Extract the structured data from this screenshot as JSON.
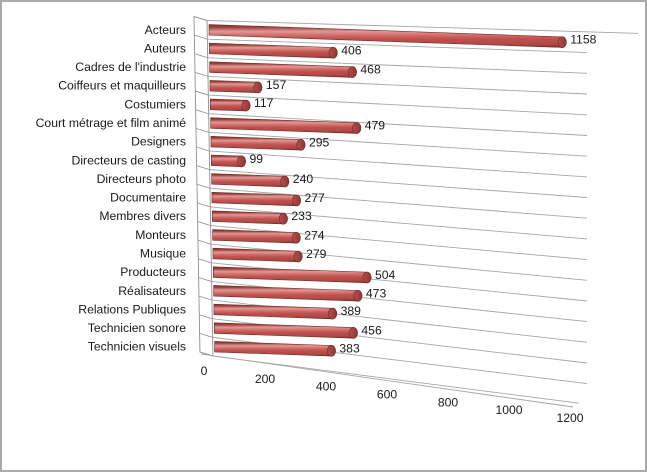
{
  "chart_data": {
    "type": "bar",
    "orientation": "horizontal",
    "style": "3d-cylinder",
    "title": "",
    "legend": "none",
    "grid": "on",
    "categories": [
      "Acteurs",
      "Auteurs",
      "Cadres de l'industrie",
      "Coiffeurs et maquilleurs",
      "Costumiers",
      "Court métrage et film animé",
      "Designers",
      "Directeurs de casting",
      "Directeurs photo",
      "Documentaire",
      "Membres divers",
      "Monteurs",
      "Musique",
      "Producteurs",
      "Réalisateurs",
      "Relations Publiques",
      "Technicien sonore",
      "Technicien visuels"
    ],
    "values": [
      1158,
      406,
      468,
      157,
      117,
      479,
      295,
      99,
      240,
      277,
      233,
      274,
      279,
      504,
      473,
      389,
      456,
      383
    ],
    "data_labels": [
      "1158",
      "406",
      "468",
      "157",
      "117",
      "479",
      "295",
      "99",
      "240",
      "277",
      "233",
      "274",
      "279",
      "504",
      "473",
      "389",
      "456",
      "383"
    ],
    "x_ticks": [
      0,
      200,
      400,
      600,
      800,
      1000,
      1200
    ],
    "x_tick_labels": [
      "0",
      "200",
      "400",
      "600",
      "800",
      "1000",
      "1200"
    ],
    "xlim": [
      0,
      1200
    ],
    "xlabel": "",
    "ylabel": "",
    "colors": {
      "bar_main": "#c0504d",
      "bar_dark": "#7f3331",
      "bar_light": "#e09a96",
      "bar_outline": "#6f2a28",
      "gridline": "#a6a6a6",
      "wall_stroke": "#8f8f8f",
      "wall_fill": "#ffffff",
      "text": "#1a1a1a",
      "background": "#ffffff",
      "frame_border": "#a9a9a9"
    }
  }
}
